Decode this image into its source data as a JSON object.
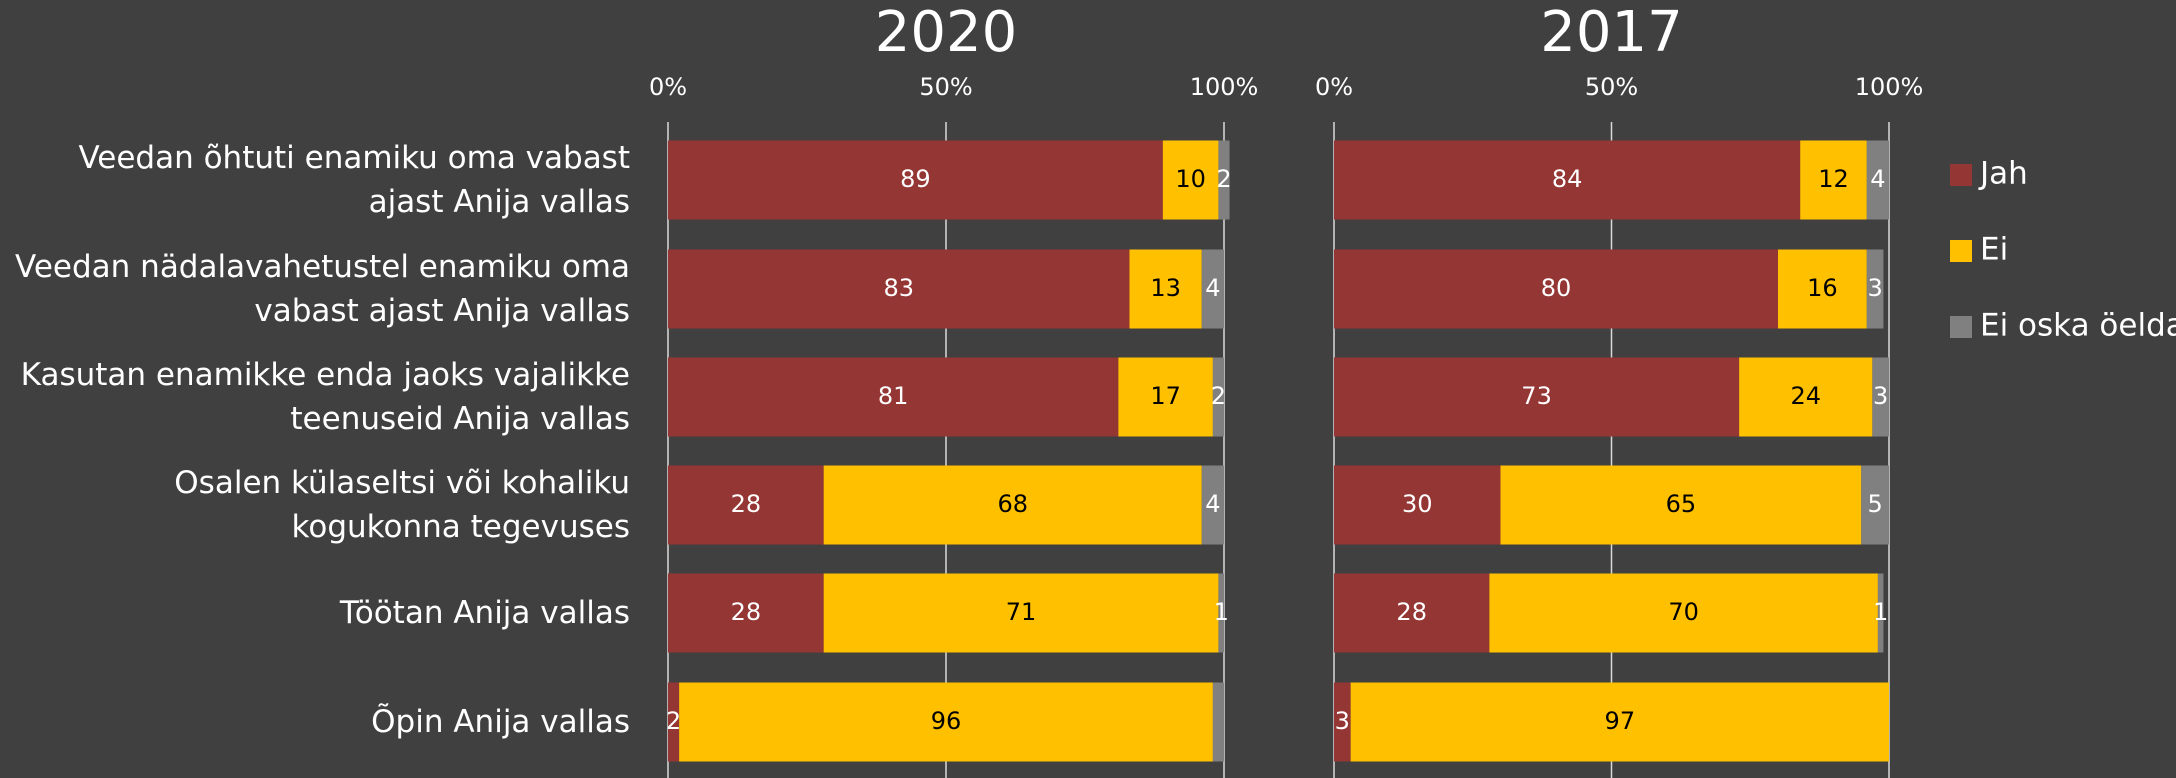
{
  "chart_data": [
    {
      "type": "stacked-bar",
      "title": "2020",
      "categories": [
        "Veedan õhtuti enamiku oma vabast ajast Anija vallas",
        "Veedan nädalavahetustel enamiku oma vabast ajast Anija vallas",
        "Kasutan enamikke enda jaoks vajalikke teenuseid Anija vallas",
        "Osalen külaseltsi või kohaliku kogukonna tegevuses",
        "Töötan Anija vallas",
        "Õpin Anija vallas"
      ],
      "series": [
        {
          "name": "Jah",
          "color": "#943634",
          "values": [
            89,
            83,
            81,
            28,
            28,
            2
          ]
        },
        {
          "name": "Ei",
          "color": "#ffc000",
          "values": [
            10,
            13,
            17,
            68,
            71,
            96
          ]
        },
        {
          "name": "Ei oska öelda",
          "color": "#808080",
          "values": [
            2,
            4,
            2,
            4,
            1,
            2
          ],
          "value_labels": [
            "2",
            "4",
            "2",
            "4",
            "1",
            null
          ]
        }
      ],
      "xlim": [
        0,
        100
      ],
      "xticks": [
        {
          "value": 0,
          "label": "0%"
        },
        {
          "value": 50,
          "label": "50%"
        },
        {
          "value": 100,
          "label": "100%"
        }
      ],
      "grid": true
    },
    {
      "type": "stacked-bar",
      "title": "2017",
      "series": [
        {
          "color": "#943634",
          "values": [
            84,
            80,
            73,
            30,
            28,
            3
          ]
        },
        {
          "color": "#ffc000",
          "values": [
            12,
            16,
            24,
            65,
            70,
            97
          ]
        },
        {
          "color": "#808080",
          "values": [
            4,
            3,
            3,
            5,
            1,
            0
          ],
          "value_labels": [
            "4",
            "3",
            "3",
            "5",
            "1",
            null
          ]
        }
      ],
      "xlim": [
        0,
        100
      ],
      "xticks": [
        {
          "value": 0,
          "label": "0%"
        },
        {
          "value": 50,
          "label": "50%"
        },
        {
          "value": 100,
          "label": "100%"
        }
      ],
      "grid": true
    }
  ]
}
